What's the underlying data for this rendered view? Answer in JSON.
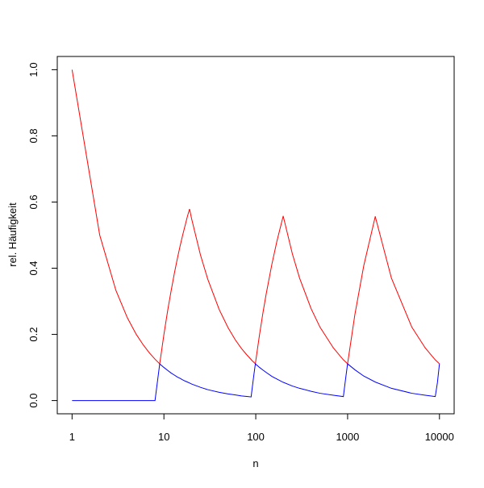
{
  "chart_data": {
    "type": "line",
    "x_label": "n",
    "y_label": "rel. Häufigkeit",
    "x": [
      1,
      2,
      3,
      4,
      5,
      6,
      7,
      8,
      9,
      10,
      11,
      12,
      13,
      14,
      15,
      16,
      17,
      18,
      19,
      20,
      25,
      30,
      40,
      50,
      60,
      70,
      80,
      89,
      90,
      95,
      99,
      100,
      110,
      120,
      130,
      150,
      170,
      199,
      200,
      250,
      300,
      400,
      500,
      700,
      899,
      900,
      950,
      999,
      1000,
      1200,
      1500,
      1999,
      2000,
      3000,
      5000,
      7000,
      8999,
      9000,
      9500,
      9999,
      10000
    ],
    "series": [
      {
        "color": "#ff0000",
        "values": [
          1,
          0.5,
          0.333,
          0.25,
          0.2,
          0.167,
          0.143,
          0.125,
          0.111,
          0.2,
          0.273,
          0.333,
          0.385,
          0.429,
          0.467,
          0.5,
          0.529,
          0.556,
          0.579,
          0.55,
          0.44,
          0.367,
          0.275,
          0.22,
          0.183,
          0.157,
          0.138,
          0.124,
          0.122,
          0.116,
          0.111,
          0.12,
          0.2,
          0.267,
          0.323,
          0.413,
          0.482,
          0.558,
          0.555,
          0.444,
          0.37,
          0.278,
          0.222,
          0.159,
          0.123,
          0.123,
          0.117,
          0.111,
          0.112,
          0.26,
          0.408,
          0.556,
          0.556,
          0.37,
          0.222,
          0.159,
          0.123,
          0.123,
          0.117,
          0.111,
          0.111
        ]
      },
      {
        "color": "#0000ff",
        "values": [
          0,
          0,
          0,
          0,
          0,
          0,
          0,
          0,
          0.111,
          0.1,
          0.091,
          0.083,
          0.077,
          0.071,
          0.067,
          0.0625,
          0.059,
          0.056,
          0.053,
          0.05,
          0.04,
          0.033,
          0.025,
          0.02,
          0.017,
          0.014,
          0.0125,
          0.011,
          0.022,
          0.074,
          0.111,
          0.11,
          0.1,
          0.092,
          0.085,
          0.073,
          0.065,
          0.055,
          0.055,
          0.044,
          0.037,
          0.028,
          0.022,
          0.016,
          0.012,
          0.013,
          0.065,
          0.111,
          0.111,
          0.093,
          0.074,
          0.056,
          0.056,
          0.037,
          0.022,
          0.016,
          0.012,
          0.012,
          0.054,
          0.111,
          0.111
        ]
      }
    ],
    "x_log": true,
    "xlim": [
      0.69,
      14454
    ],
    "xticks": [
      1,
      10,
      100,
      1000,
      10000
    ],
    "ylim": [
      -0.04,
      1.04
    ],
    "yticks": [
      {
        "value": 0,
        "label": "0.0"
      },
      {
        "value": 0.2,
        "label": "0.2"
      },
      {
        "value": 0.4,
        "label": "0.4"
      },
      {
        "value": 0.6,
        "label": "0.6"
      },
      {
        "value": 0.8,
        "label": "0.8"
      },
      {
        "value": 1,
        "label": "1.0"
      }
    ]
  }
}
